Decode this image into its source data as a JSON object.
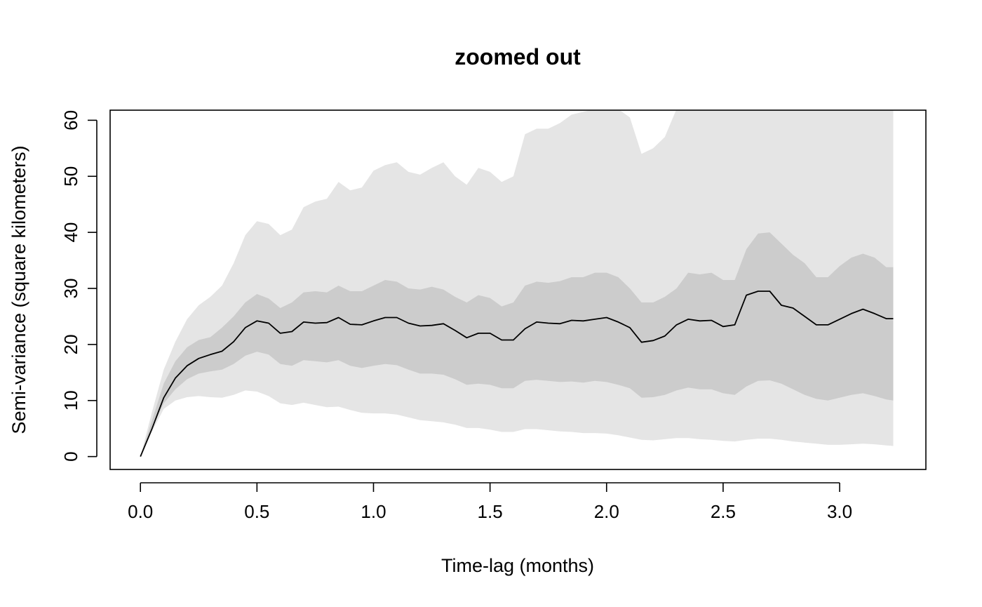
{
  "chart_data": {
    "type": "line",
    "title": "zoomed out",
    "xlabel": "Time-lag (months)",
    "ylabel": "Semi-variance (square kilometers)",
    "xlim": [
      -0.13,
      3.37
    ],
    "ylim": [
      -2.3,
      61.8
    ],
    "x_ticks": [
      0.0,
      0.5,
      1.0,
      1.5,
      2.0,
      2.5,
      3.0
    ],
    "x_tick_labels": [
      "0.0",
      "0.5",
      "1.0",
      "1.5",
      "2.0",
      "2.5",
      "3.0"
    ],
    "y_ticks": [
      0,
      10,
      20,
      30,
      40,
      50,
      60
    ],
    "y_tick_labels": [
      "0",
      "10",
      "20",
      "30",
      "40",
      "50",
      "60"
    ],
    "grid": false,
    "colors": {
      "outer_band": "#e5e5e5",
      "inner_band": "#cccccc",
      "line": "#000000"
    },
    "x": [
      0.0,
      0.05,
      0.1,
      0.15,
      0.2,
      0.25,
      0.3,
      0.35,
      0.4,
      0.45,
      0.5,
      0.55,
      0.6,
      0.65,
      0.7,
      0.75,
      0.8,
      0.85,
      0.9,
      0.95,
      1.0,
      1.05,
      1.1,
      1.15,
      1.2,
      1.25,
      1.3,
      1.35,
      1.4,
      1.45,
      1.5,
      1.55,
      1.6,
      1.65,
      1.7,
      1.75,
      1.8,
      1.85,
      1.9,
      1.95,
      2.0,
      2.05,
      2.1,
      2.15,
      2.2,
      2.25,
      2.3,
      2.35,
      2.4,
      2.45,
      2.5,
      2.55,
      2.6,
      2.65,
      2.7,
      2.75,
      2.8,
      2.85,
      2.9,
      2.95,
      3.0,
      3.05,
      3.1,
      3.15,
      3.2,
      3.23
    ],
    "series": [
      {
        "role": "estimate",
        "values": [
          0.0,
          5.0,
          10.5,
          14.0,
          16.2,
          17.5,
          18.2,
          18.8,
          20.5,
          23.0,
          24.2,
          23.8,
          22.0,
          22.3,
          24.0,
          23.8,
          23.9,
          24.8,
          23.6,
          23.5,
          24.2,
          24.8,
          24.8,
          23.8,
          23.3,
          23.4,
          23.7,
          22.5,
          21.2,
          22.0,
          22.0,
          20.8,
          20.8,
          22.8,
          24.0,
          23.8,
          23.7,
          24.3,
          24.2,
          24.5,
          24.8,
          24.0,
          23.0,
          20.4,
          20.7,
          21.5,
          23.5,
          24.5,
          24.2,
          24.3,
          23.2,
          23.5,
          28.8,
          29.5,
          29.5,
          27.0,
          26.5,
          25.0,
          23.5,
          23.5,
          24.5,
          25.5,
          26.3,
          25.5,
          24.6,
          24.6
        ]
      },
      {
        "role": "inner-band-upper",
        "values": [
          0.0,
          6.5,
          13.0,
          17.0,
          19.5,
          20.8,
          21.3,
          23.0,
          25.0,
          27.5,
          29.0,
          28.2,
          26.5,
          27.5,
          29.3,
          29.5,
          29.3,
          30.5,
          29.5,
          29.5,
          30.5,
          31.5,
          31.2,
          30.0,
          29.8,
          30.3,
          29.8,
          28.5,
          27.5,
          28.8,
          28.3,
          26.8,
          27.5,
          30.5,
          31.2,
          31.0,
          31.3,
          32.0,
          32.0,
          32.8,
          32.8,
          32.0,
          30.0,
          27.5,
          27.5,
          28.5,
          30.0,
          32.8,
          32.5,
          32.8,
          31.5,
          31.5,
          37.0,
          39.8,
          40.0,
          38.0,
          36.0,
          34.5,
          32.0,
          32.0,
          34.0,
          35.5,
          36.2,
          35.5,
          33.8,
          33.8
        ]
      },
      {
        "role": "inner-band-lower",
        "values": [
          0.0,
          5.0,
          9.5,
          12.0,
          13.8,
          14.8,
          15.2,
          15.5,
          16.5,
          18.0,
          18.7,
          18.2,
          16.5,
          16.2,
          17.2,
          17.0,
          16.8,
          17.2,
          16.2,
          15.8,
          16.2,
          16.5,
          16.3,
          15.5,
          14.8,
          14.8,
          14.6,
          13.8,
          12.8,
          13.0,
          12.8,
          12.2,
          12.2,
          13.5,
          13.7,
          13.5,
          13.3,
          13.4,
          13.2,
          13.5,
          13.3,
          12.8,
          12.2,
          10.5,
          10.6,
          11.0,
          11.8,
          12.3,
          12.0,
          12.0,
          11.3,
          11.0,
          12.5,
          13.5,
          13.6,
          13.0,
          12.0,
          11.0,
          10.3,
          10.0,
          10.5,
          11.0,
          11.3,
          10.8,
          10.2,
          10.0
        ]
      },
      {
        "role": "outer-band-upper",
        "values": [
          0.0,
          8.0,
          15.5,
          20.5,
          24.5,
          27.0,
          28.5,
          30.5,
          34.5,
          39.5,
          42.0,
          41.5,
          39.5,
          40.5,
          44.5,
          45.5,
          46.0,
          49.0,
          47.5,
          48.0,
          51.0,
          52.0,
          52.5,
          50.8,
          50.3,
          51.5,
          52.5,
          50.0,
          48.5,
          51.5,
          50.8,
          49.0,
          50.0,
          57.5,
          58.5,
          58.5,
          59.5,
          61.0,
          61.5,
          62.0,
          62.0,
          62.0,
          60.5,
          54.0,
          55.0,
          57.0,
          62.0,
          62.0,
          62.0,
          62.0,
          62.0,
          62.0,
          62.0,
          62.0,
          62.0,
          62.0,
          62.0,
          62.0,
          62.0,
          62.0,
          62.0,
          62.0,
          62.0,
          62.0,
          62.0,
          62.0
        ]
      },
      {
        "role": "outer-band-lower",
        "values": [
          0.0,
          4.5,
          8.5,
          10.0,
          10.6,
          10.8,
          10.6,
          10.5,
          11.0,
          11.8,
          11.6,
          10.8,
          9.5,
          9.2,
          9.6,
          9.2,
          8.8,
          8.9,
          8.3,
          7.8,
          7.7,
          7.7,
          7.5,
          7.0,
          6.5,
          6.3,
          6.1,
          5.7,
          5.1,
          5.1,
          4.8,
          4.4,
          4.4,
          4.9,
          4.9,
          4.7,
          4.5,
          4.4,
          4.2,
          4.2,
          4.1,
          3.8,
          3.4,
          3.0,
          2.9,
          3.1,
          3.3,
          3.3,
          3.1,
          3.0,
          2.8,
          2.7,
          3.0,
          3.2,
          3.2,
          3.0,
          2.7,
          2.5,
          2.3,
          2.1,
          2.1,
          2.2,
          2.3,
          2.2,
          2.0,
          1.9
        ]
      }
    ]
  }
}
